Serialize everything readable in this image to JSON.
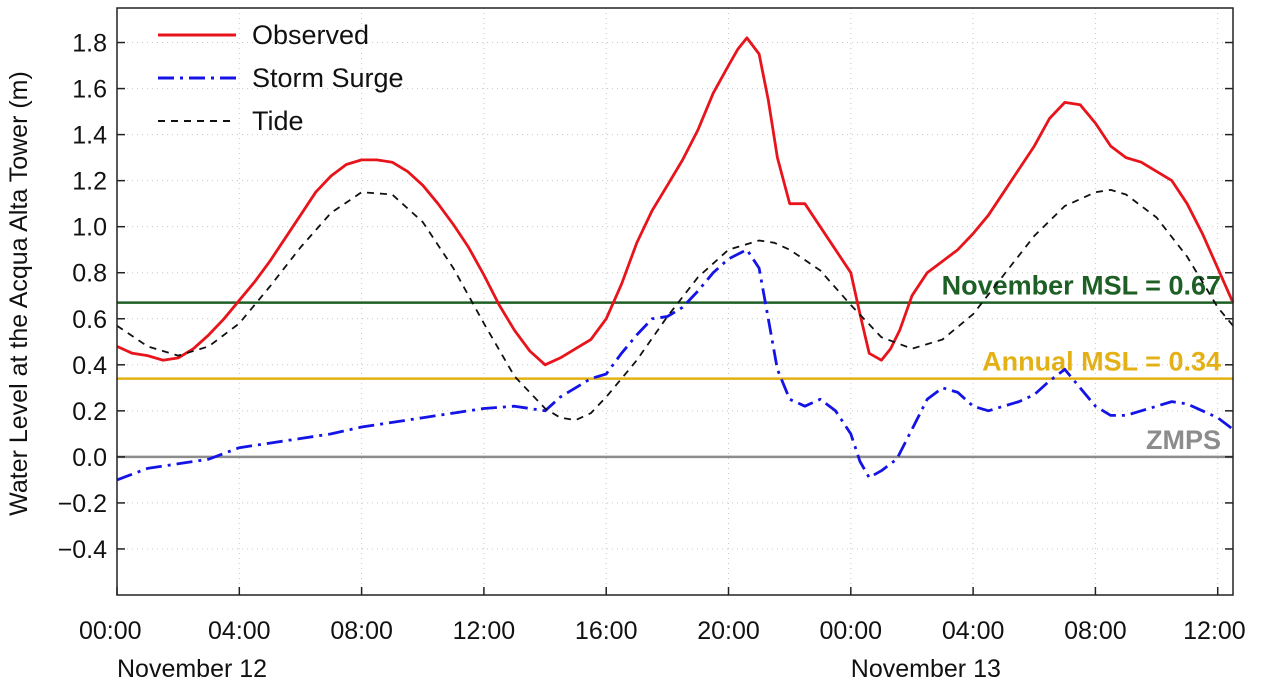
{
  "chart_data": {
    "type": "line",
    "ylabel": "Water Level at the Acqua Alta Tower (m)",
    "xlabel": "",
    "ylim": [
      -0.6,
      1.95
    ],
    "xlim_hours": [
      0,
      36.5
    ],
    "grid": true,
    "legend_position": "top-left",
    "y_ticks": [
      "1.8",
      "1.6",
      "1.4",
      "1.2",
      "1.0",
      "0.8",
      "0.6",
      "0.4",
      "0.2",
      "0.0",
      "−0.2",
      "−0.4"
    ],
    "y_tick_values": [
      1.8,
      1.6,
      1.4,
      1.2,
      1.0,
      0.8,
      0.6,
      0.4,
      0.2,
      0.0,
      -0.2,
      -0.4
    ],
    "x_ticks": [
      "00:00",
      "04:00",
      "08:00",
      "12:00",
      "16:00",
      "20:00",
      "00:00",
      "04:00",
      "08:00",
      "12:00"
    ],
    "x_tick_hours": [
      0,
      4,
      8,
      12,
      16,
      20,
      24,
      28,
      32,
      36
    ],
    "date_labels": [
      "November 12",
      "November 13"
    ],
    "date_label_hours": [
      0,
      24
    ],
    "series": [
      {
        "name": "Observed",
        "color": "#e8141b",
        "style": "solid",
        "x": [
          0,
          0.5,
          1,
          1.5,
          2,
          2.5,
          3,
          3.5,
          4,
          4.5,
          5,
          5.5,
          6,
          6.5,
          7,
          7.5,
          8,
          8.5,
          9,
          9.5,
          10,
          10.5,
          11,
          11.5,
          12,
          12.5,
          13,
          13.5,
          14,
          14.5,
          15,
          15.5,
          16,
          16.5,
          17,
          17.5,
          18,
          18.5,
          19,
          19.5,
          20,
          20.3,
          20.6,
          21,
          21.3,
          21.6,
          22,
          22.5,
          23,
          23.5,
          24,
          24.3,
          24.6,
          25,
          25.3,
          25.6,
          26,
          26.5,
          27,
          27.5,
          28,
          28.5,
          29,
          29.5,
          30,
          30.5,
          31,
          31.5,
          32,
          32.5,
          33,
          33.5,
          34,
          34.5,
          35,
          35.5,
          36,
          36.5
        ],
        "values": [
          0.48,
          0.45,
          0.44,
          0.42,
          0.43,
          0.47,
          0.53,
          0.6,
          0.68,
          0.76,
          0.85,
          0.95,
          1.05,
          1.15,
          1.22,
          1.27,
          1.29,
          1.29,
          1.28,
          1.24,
          1.18,
          1.1,
          1.01,
          0.91,
          0.79,
          0.66,
          0.55,
          0.46,
          0.4,
          0.43,
          0.47,
          0.51,
          0.6,
          0.75,
          0.93,
          1.07,
          1.18,
          1.29,
          1.42,
          1.58,
          1.7,
          1.77,
          1.82,
          1.75,
          1.55,
          1.3,
          1.1,
          1.1,
          1.0,
          0.9,
          0.8,
          0.62,
          0.45,
          0.42,
          0.47,
          0.55,
          0.7,
          0.8,
          0.85,
          0.9,
          0.97,
          1.05,
          1.15,
          1.25,
          1.35,
          1.47,
          1.54,
          1.53,
          1.45,
          1.35,
          1.3,
          1.28,
          1.24,
          1.2,
          1.1,
          0.97,
          0.82,
          0.67
        ]
      },
      {
        "name": "Storm Surge",
        "color": "#1414e6",
        "style": "dash-dot",
        "x": [
          0,
          1,
          2,
          3,
          4,
          5,
          6,
          7,
          8,
          9,
          10,
          11,
          12,
          13,
          14,
          14.5,
          15,
          15.5,
          16,
          16.5,
          17,
          17.5,
          18,
          18.5,
          19,
          19.5,
          20,
          20.3,
          20.6,
          21,
          21.3,
          21.6,
          22,
          22.5,
          23,
          23.5,
          24,
          24.3,
          24.6,
          25,
          25.5,
          26,
          26.5,
          27,
          27.5,
          28,
          28.5,
          29,
          29.5,
          30,
          30.5,
          31,
          31.5,
          32,
          32.5,
          33,
          33.5,
          34,
          34.5,
          35,
          35.5,
          36,
          36.5
        ],
        "values": [
          -0.1,
          -0.05,
          -0.03,
          -0.01,
          0.04,
          0.06,
          0.08,
          0.1,
          0.13,
          0.15,
          0.17,
          0.19,
          0.21,
          0.22,
          0.2,
          0.26,
          0.3,
          0.34,
          0.36,
          0.45,
          0.53,
          0.6,
          0.61,
          0.65,
          0.72,
          0.8,
          0.86,
          0.88,
          0.9,
          0.82,
          0.6,
          0.38,
          0.25,
          0.22,
          0.25,
          0.2,
          0.1,
          -0.02,
          -0.09,
          -0.06,
          -0.01,
          0.12,
          0.25,
          0.3,
          0.28,
          0.22,
          0.2,
          0.22,
          0.24,
          0.27,
          0.33,
          0.38,
          0.3,
          0.22,
          0.18,
          0.18,
          0.2,
          0.22,
          0.24,
          0.23,
          0.2,
          0.17,
          0.12
        ]
      },
      {
        "name": "Tide",
        "color": "#111111",
        "style": "dashed",
        "x": [
          0,
          1,
          2,
          3,
          4,
          5,
          6,
          7,
          8,
          9,
          10,
          11,
          12,
          13,
          14,
          14.5,
          15,
          15.5,
          16,
          17,
          18,
          19,
          20,
          21,
          21.5,
          22,
          23,
          24,
          25,
          26,
          27,
          28,
          29,
          30,
          31,
          32,
          32.5,
          33,
          34,
          35,
          36,
          36.5
        ],
        "values": [
          0.57,
          0.48,
          0.44,
          0.48,
          0.58,
          0.74,
          0.91,
          1.06,
          1.15,
          1.14,
          1.02,
          0.82,
          0.58,
          0.35,
          0.21,
          0.17,
          0.16,
          0.19,
          0.26,
          0.42,
          0.61,
          0.78,
          0.9,
          0.94,
          0.93,
          0.9,
          0.81,
          0.66,
          0.52,
          0.47,
          0.51,
          0.62,
          0.79,
          0.96,
          1.09,
          1.15,
          1.16,
          1.14,
          1.04,
          0.87,
          0.65,
          0.57
        ]
      }
    ],
    "reference_lines": [
      {
        "label": "November MSL = 0.67",
        "value": 0.67,
        "color": "#1d5f25"
      },
      {
        "label": "Annual MSL = 0.34",
        "value": 0.34,
        "color": "#e3b116"
      },
      {
        "label": "ZMPS",
        "value": 0.0,
        "color": "#8c8c8c"
      }
    ]
  }
}
